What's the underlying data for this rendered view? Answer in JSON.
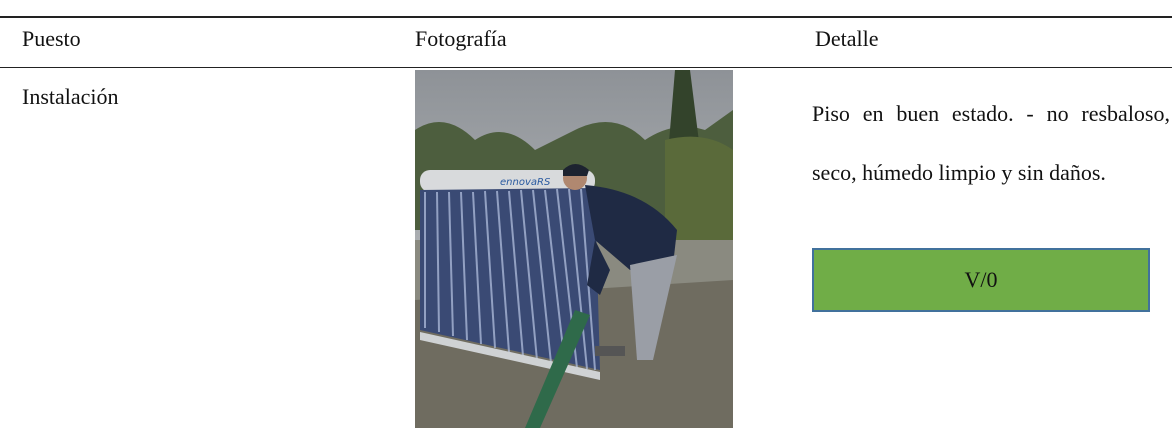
{
  "table": {
    "headers": [
      "Puesto",
      "Fotografía",
      "Detalle"
    ],
    "rows": [
      {
        "puesto": "Instalación",
        "detalle": "Piso en buen estado. - no resbaloso, seco, húmedo limpio y sin daños.",
        "badge": "V/0"
      }
    ]
  }
}
